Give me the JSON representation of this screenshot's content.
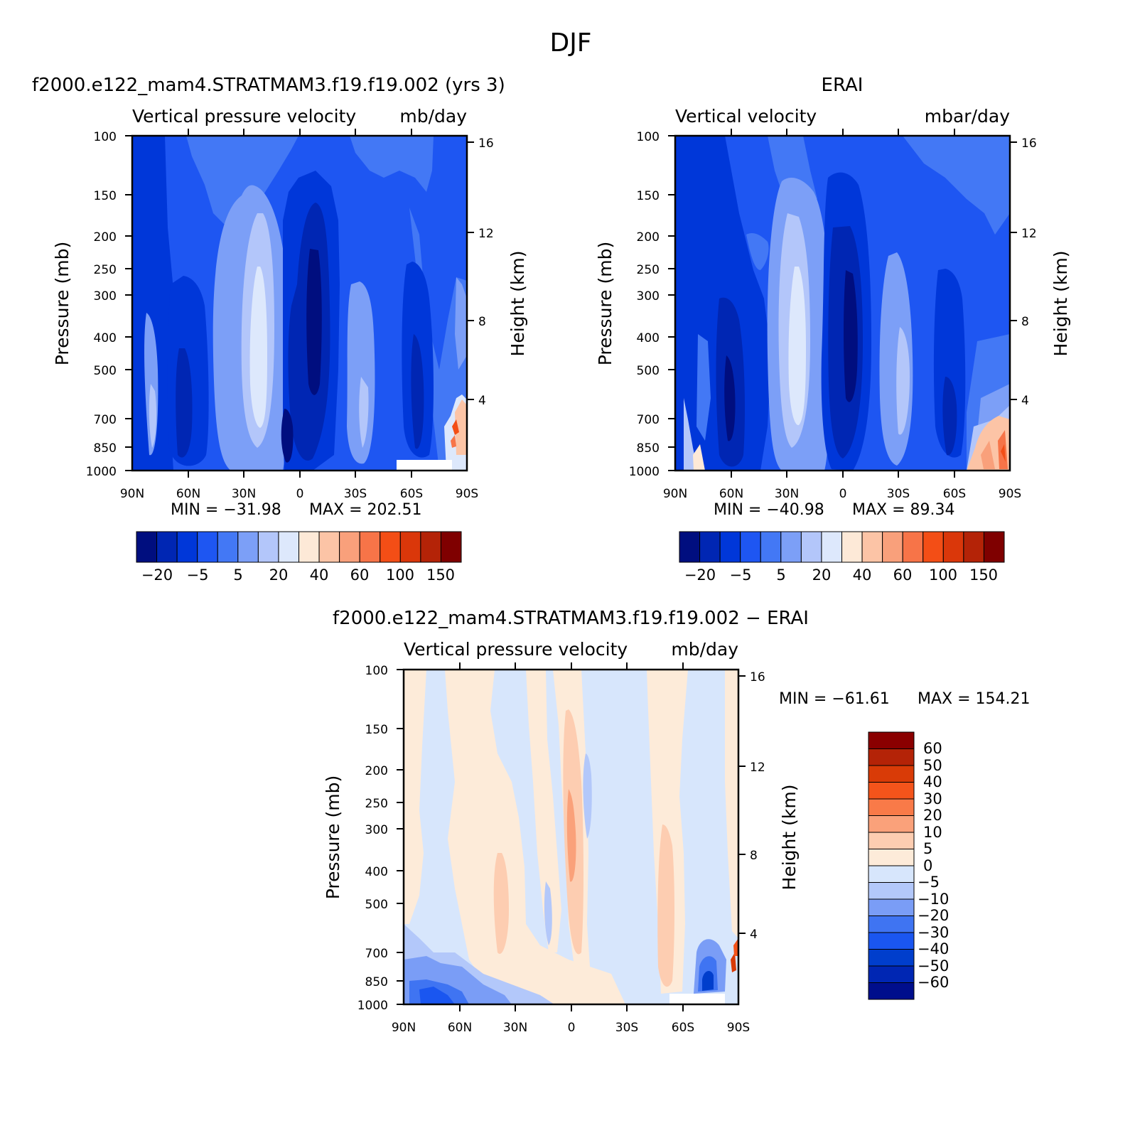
{
  "figure_title": "DJF",
  "colors": {
    "model_scale": [
      "#000e7f",
      "#0026b3",
      "#0037d9",
      "#1e56f2",
      "#4378f5",
      "#7c9ff7",
      "#b3c6fa",
      "#dde8fc",
      "#fde9d7",
      "#fcc4a6",
      "#f9a07b",
      "#f77448",
      "#f34e16",
      "#da370a",
      "#b42307",
      "#7f0000"
    ],
    "diff_scale": [
      "#000e8c",
      "#0026b3",
      "#003ecc",
      "#1a56f0",
      "#3f74f2",
      "#7a9df6",
      "#b3c8fa",
      "#d7e6fc",
      "#fdebd9",
      "#fdcdb1",
      "#faa17a",
      "#f97a48",
      "#f4541b",
      "#d93b07",
      "#b42307",
      "#8a0000"
    ]
  },
  "chart_data": [
    {
      "type": "contour",
      "title": "f2000.e122_mam4.STRATMAM3.f19.f19.002 (yrs 3)",
      "subtitle_left": "Vertical pressure velocity",
      "subtitle_right": "mb/day",
      "xlabel": "",
      "ylabel": "Pressure (mb)",
      "ylabel_right": "Height (km)",
      "x_ticks": [
        "90N",
        "60N",
        "30N",
        "0",
        "30S",
        "60S",
        "90S"
      ],
      "x_values": [
        90,
        60,
        30,
        0,
        -30,
        -60,
        -90
      ],
      "y_ticks": [
        "100",
        "150",
        "200",
        "250",
        "300",
        "400",
        "500",
        "700",
        "850",
        "1000"
      ],
      "y_values": [
        100,
        150,
        200,
        250,
        300,
        400,
        500,
        700,
        850,
        1000
      ],
      "y_scale": "log",
      "ylim": [
        1000,
        100
      ],
      "height_ticks": [
        "16",
        "12",
        "8",
        "4"
      ],
      "height_values": [
        16,
        12,
        8,
        4
      ],
      "min_text": "MIN = −31.98",
      "max_text": "MAX = 202.51",
      "colorbar_labels": [
        "−20",
        "−5",
        "5",
        "20",
        "40",
        "60",
        "100",
        "150"
      ]
    },
    {
      "type": "contour",
      "title": "ERAI",
      "subtitle_left": "Vertical velocity",
      "subtitle_right": "mbar/day",
      "xlabel": "",
      "ylabel": "Pressure (mb)",
      "ylabel_right": "Height (km)",
      "x_ticks": [
        "90N",
        "60N",
        "30N",
        "0",
        "30S",
        "60S",
        "90S"
      ],
      "x_values": [
        90,
        60,
        30,
        0,
        -30,
        -60,
        -90
      ],
      "y_ticks": [
        "100",
        "150",
        "200",
        "250",
        "300",
        "400",
        "500",
        "700",
        "850",
        "1000"
      ],
      "y_values": [
        100,
        150,
        200,
        250,
        300,
        400,
        500,
        700,
        850,
        1000
      ],
      "y_scale": "log",
      "ylim": [
        1000,
        100
      ],
      "height_ticks": [
        "16",
        "12",
        "8",
        "4"
      ],
      "height_values": [
        16,
        12,
        8,
        4
      ],
      "min_text": "MIN = −40.98",
      "max_text": "MAX =  89.34",
      "colorbar_labels": [
        "−20",
        "−5",
        "5",
        "20",
        "40",
        "60",
        "100",
        "150"
      ]
    },
    {
      "type": "contour",
      "title": "f2000.e122_mam4.STRATMAM3.f19.f19.002 − ERAI",
      "subtitle_left": "Vertical pressure velocity",
      "subtitle_right": "mb/day",
      "xlabel": "",
      "ylabel": "Pressure (mb)",
      "ylabel_right": "Height (km)",
      "x_ticks": [
        "90N",
        "60N",
        "30N",
        "0",
        "30S",
        "60S",
        "90S"
      ],
      "x_values": [
        90,
        60,
        30,
        0,
        -30,
        -60,
        -90
      ],
      "y_ticks": [
        "100",
        "150",
        "200",
        "250",
        "300",
        "400",
        "500",
        "700",
        "850",
        "1000"
      ],
      "y_values": [
        100,
        150,
        200,
        250,
        300,
        400,
        500,
        700,
        850,
        1000
      ],
      "y_scale": "log",
      "ylim": [
        1000,
        100
      ],
      "height_ticks": [
        "16",
        "12",
        "8",
        "4"
      ],
      "height_values": [
        16,
        12,
        8,
        4
      ],
      "min_text": "MIN = −61.61",
      "max_text": "MAX = 154.21",
      "colorbar_labels": [
        "60",
        "50",
        "40",
        "30",
        "20",
        "10",
        "5",
        "0",
        "−5",
        "−10",
        "−20",
        "−30",
        "−40",
        "−50",
        "−60"
      ]
    }
  ]
}
